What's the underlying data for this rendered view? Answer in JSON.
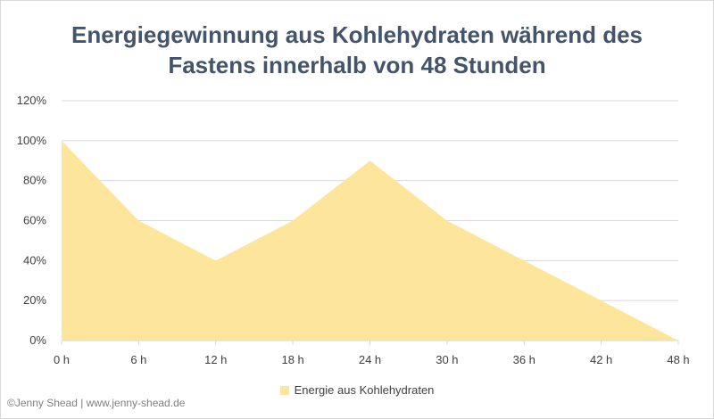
{
  "chart_data": {
    "type": "area",
    "title_lines": [
      "Energiegewinnung aus Kohlehydraten während des",
      "Fastens innerhalb von 48 Stunden"
    ],
    "x": [
      "0 h",
      "6 h",
      "12 h",
      "18 h",
      "24 h",
      "30 h",
      "36 h",
      "42 h",
      "48 h"
    ],
    "y_tick_labels": [
      "0%",
      "20%",
      "40%",
      "60%",
      "80%",
      "100%",
      "120%"
    ],
    "ylim": [
      0,
      120
    ],
    "series": [
      {
        "name": "Energie aus Kohlehydraten",
        "values": [
          100,
          60,
          40,
          60,
          90,
          60,
          40,
          20,
          0
        ],
        "color": "#fde69c"
      }
    ],
    "grid": true,
    "legend_position": "bottom"
  },
  "credit": "©Jenny Shead | www.jenny-shead.de",
  "colors": {
    "title": "#44546a",
    "gridline": "#d9d9d9",
    "axis_text": "#404040",
    "area_fill": "#fde69c"
  }
}
